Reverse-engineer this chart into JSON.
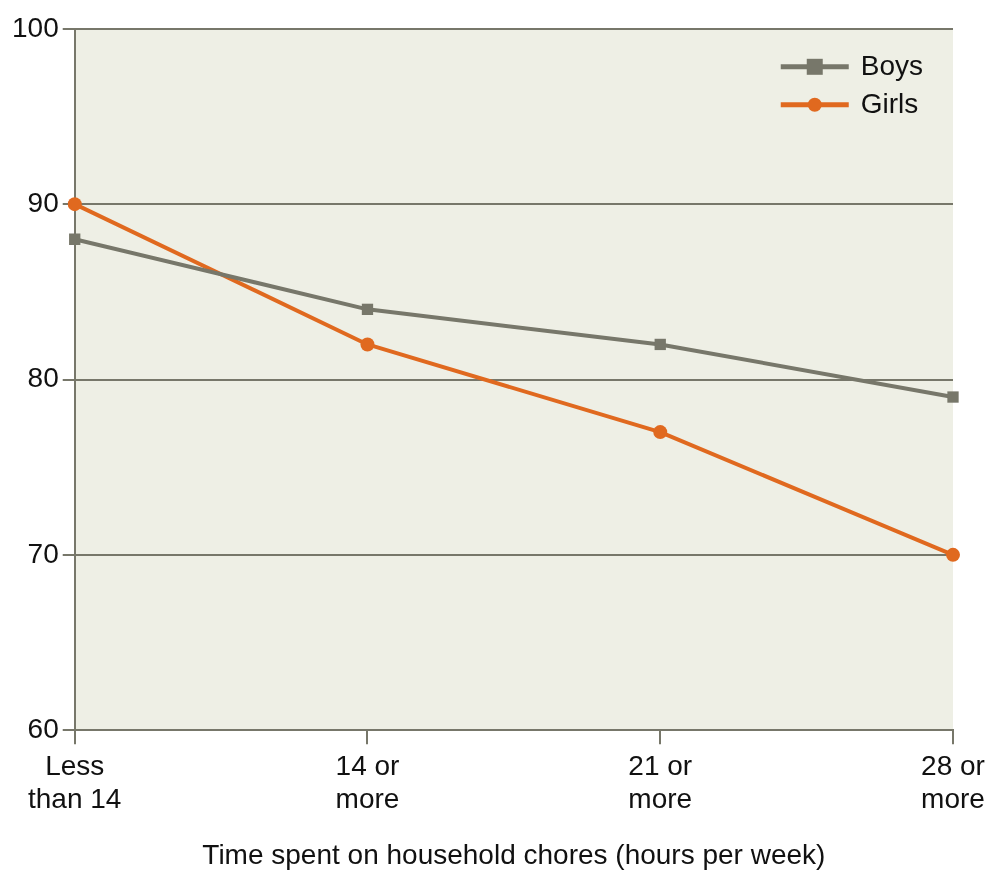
{
  "chart_data": {
    "type": "line",
    "xlabel": "Time spent on household chores (hours per week)",
    "categories": [
      "Less\nthan 14",
      "14 or\nmore",
      "21 or\nmore",
      "28 or\nmore"
    ],
    "series": [
      {
        "name": "Boys",
        "color": "#77776a",
        "values": [
          88,
          84,
          82,
          79
        ],
        "marker": "square"
      },
      {
        "name": "Girls",
        "color": "#e0691f",
        "values": [
          90,
          82,
          77,
          70
        ],
        "marker": "circle"
      }
    ],
    "ylim": [
      60,
      100
    ],
    "yticks": [
      60,
      70,
      80,
      90,
      100
    ],
    "grid": "y",
    "legend": "top right"
  }
}
